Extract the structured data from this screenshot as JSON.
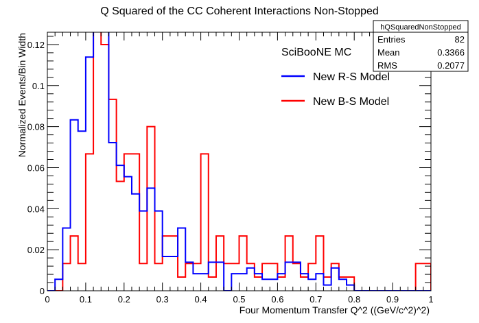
{
  "chart_data": {
    "type": "histogram-step",
    "title": "Q Squared of the CC Coherent Interactions Non-Stopped",
    "xlabel": "Four Momentum Transfer Q^2 ((GeV/c^2)^2)",
    "ylabel": "Normalized Events/Bin Width",
    "xlim": [
      0,
      1
    ],
    "ylim": [
      0,
      0.126
    ],
    "grid": false,
    "bin_width": 0.02,
    "x_tick_labels": [
      "0",
      "0.1",
      "0.2",
      "0.3",
      "0.4",
      "0.5",
      "0.6",
      "0.7",
      "0.8",
      "0.9",
      "1"
    ],
    "y_tick_labels": [
      "0",
      "0.02",
      "0.04",
      "0.06",
      "0.08",
      "0.1",
      "0.12"
    ],
    "stats_box": {
      "name": "hQSquaredNonStopped",
      "rows": [
        {
          "label": "Entries",
          "value": "82"
        },
        {
          "label": "Mean",
          "value": "0.3366"
        },
        {
          "label": "RMS",
          "value": "0.2077"
        }
      ]
    },
    "legend": {
      "placement": "top-right",
      "header": "SciBooNE MC",
      "entries": [
        {
          "name": "New R-S Model",
          "color": "#0000ff"
        },
        {
          "name": "New B-S Model",
          "color": "#ff0000"
        }
      ]
    },
    "series": [
      {
        "name": "New R-S Model",
        "color": "#0000ff",
        "values": [
          0,
          0.0056,
          0.0306,
          0.0833,
          0.0778,
          0.1139,
          0.1556,
          0.1278,
          0.0722,
          0.0611,
          0.0556,
          0.0472,
          0.0389,
          0.05,
          0.0389,
          0.0167,
          0.0167,
          0.0306,
          0.0139,
          0.0083,
          0.0083,
          0.0139,
          0.0139,
          0,
          0.0083,
          0.0083,
          0.0111,
          0.0083,
          0.0056,
          0.0056,
          0.0083,
          0.0139,
          0.0139,
          0.0083,
          0.0056,
          0.0083,
          0.0028,
          0.0111,
          0.0056,
          0.0028,
          0,
          0,
          0,
          0,
          0,
          0,
          0,
          0,
          0,
          0
        ]
      },
      {
        "name": "New B-S Model",
        "color": "#ff0000",
        "values": [
          0,
          0,
          0.0133,
          0.0267,
          0.0133,
          0.0667,
          0.1467,
          0.12,
          0.0933,
          0.0533,
          0.0667,
          0.0667,
          0.0133,
          0.08,
          0.0133,
          0.0267,
          0.0267,
          0.0067,
          0.0133,
          0.0133,
          0.0667,
          0.0067,
          0.0267,
          0.0133,
          0.0133,
          0.0267,
          0.0133,
          0.0067,
          0.0133,
          0.0133,
          0.0067,
          0.0267,
          0.0133,
          0.0067,
          0.0133,
          0.0267,
          0.0067,
          0.0133,
          0.0067,
          0.0067,
          0,
          0,
          0,
          0,
          0,
          0,
          0,
          0,
          0.0133,
          0.0133
        ]
      }
    ]
  }
}
